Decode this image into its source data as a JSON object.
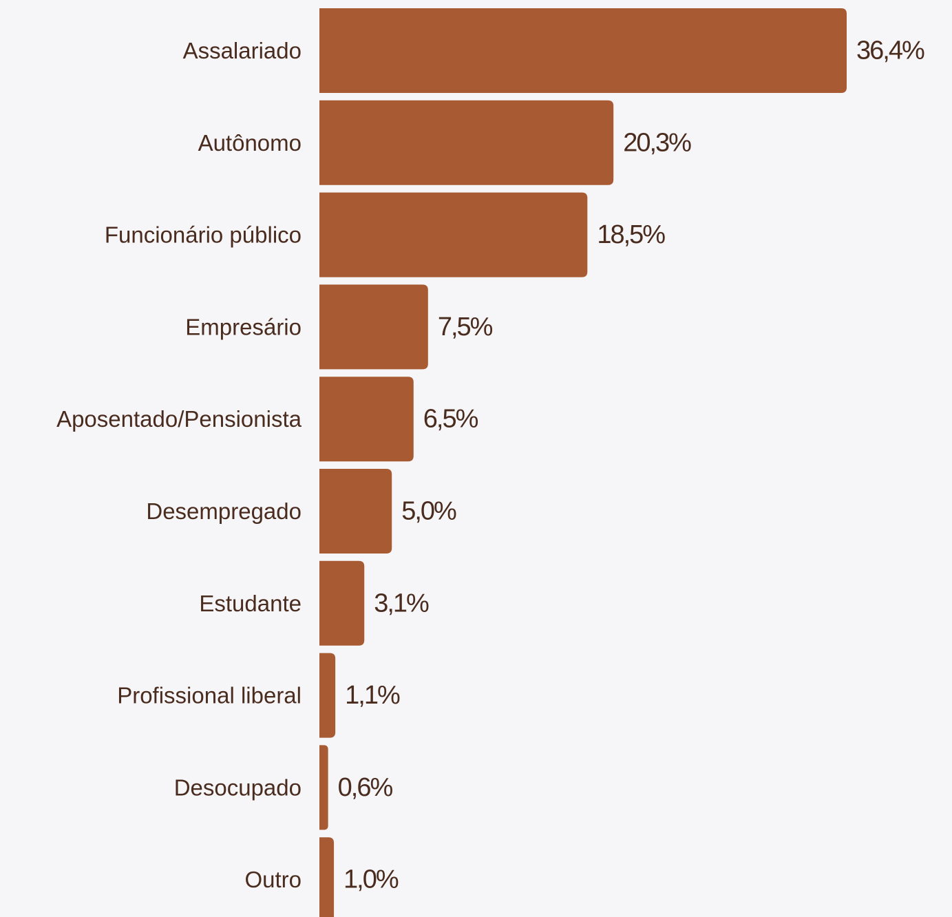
{
  "chart_data": {
    "type": "bar",
    "orientation": "horizontal",
    "categories": [
      "Assalariado",
      "Autônomo",
      "Funcionário público",
      "Empresário",
      "Aposentado/Pensionista",
      "Desempregado",
      "Estudante",
      "Profissional liberal",
      "Desocupado",
      "Outro"
    ],
    "values": [
      36.4,
      20.3,
      18.5,
      7.5,
      6.5,
      5.0,
      3.1,
      1.1,
      0.6,
      1.0
    ],
    "value_labels": [
      "36,4%",
      "20,3%",
      "18,5%",
      "7,5%",
      "6,5%",
      "5,0%",
      "3,1%",
      "1,1%",
      "0,6%",
      "1,0%"
    ],
    "title": "",
    "xlabel": "",
    "ylabel": "",
    "xlim": [
      0,
      36.4
    ],
    "grid": false,
    "legend": "none",
    "bar_color": "#a85a32",
    "text_color": "#4a2c1f",
    "background_color": "#f6f5f8"
  }
}
